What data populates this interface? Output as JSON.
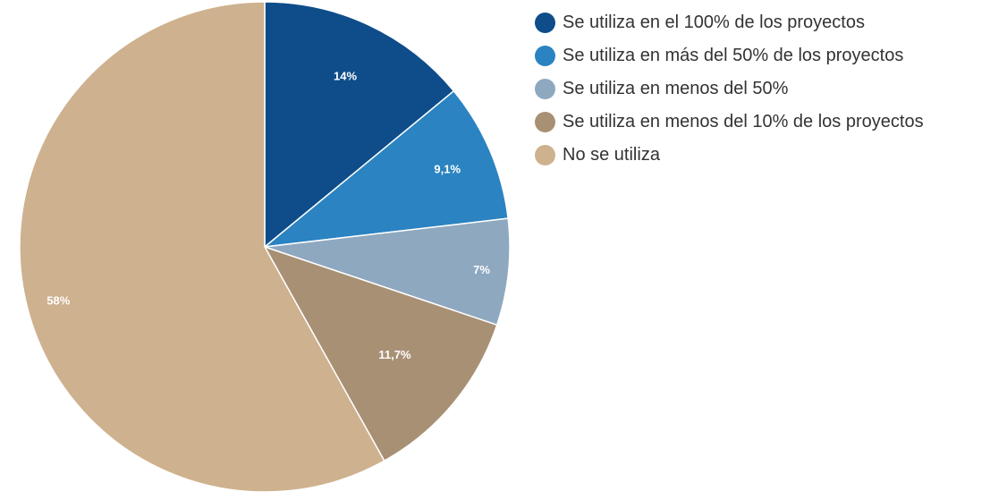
{
  "chart_data": {
    "type": "pie",
    "title": "",
    "legend_position": "right",
    "start_angle": "top, clockwise",
    "categories": [
      "Se utiliza en el 100% de los proyectos",
      "Se utiliza en más del 50% de los proyectos",
      "Se utiliza en menos del 50%",
      "Se utiliza en menos del 10% de los proyectos",
      "No se utiliza"
    ],
    "values": [
      14,
      9.1,
      7,
      11.7,
      58
    ],
    "labels": [
      "14%",
      "9,1%",
      "7%",
      "11,7%",
      "58%"
    ],
    "colors": [
      "#0e4d8a",
      "#2b83c1",
      "#8ea8bf",
      "#a89074",
      "#ceb18e"
    ]
  }
}
